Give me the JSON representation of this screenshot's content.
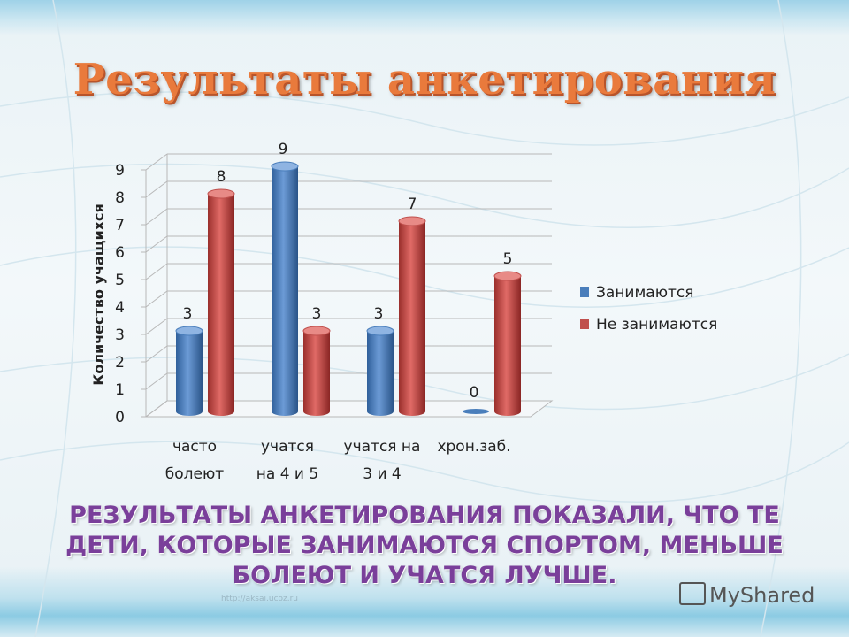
{
  "slide": {
    "title": "Результаты анкетирования",
    "caption": "Результаты анкетирования  показали, что те дети, которые занимаются спортом,  меньше  болеют и учатся лучше.",
    "watermark": "http://aksai.ucoz.ru",
    "brand": "MyShared"
  },
  "colors": {
    "title": "#e97a3c",
    "caption": "#7a3f9a",
    "series_blue": "#4a7ebb",
    "series_red": "#c0504d"
  },
  "chart_data": {
    "type": "bar",
    "title": "",
    "ylabel": "Количество учащихся",
    "xlabel": "",
    "ylim": [
      0,
      9
    ],
    "yticks": [
      "0",
      "1",
      "2",
      "3",
      "4",
      "5",
      "6",
      "7",
      "8",
      "9"
    ],
    "grid": true,
    "legend": "right",
    "categories": [
      [
        "часто",
        "болеют"
      ],
      [
        "учатся",
        "на 4 и 5"
      ],
      [
        "учатся на",
        "3 и 4"
      ],
      [
        "хрон.заб.",
        ""
      ]
    ],
    "series": [
      {
        "name": "Занимаются",
        "color": "#4a7ebb",
        "values": [
          3,
          9,
          3,
          0
        ]
      },
      {
        "name": "Не занимаются",
        "color": "#c0504d",
        "values": [
          8,
          3,
          7,
          5
        ]
      }
    ]
  }
}
